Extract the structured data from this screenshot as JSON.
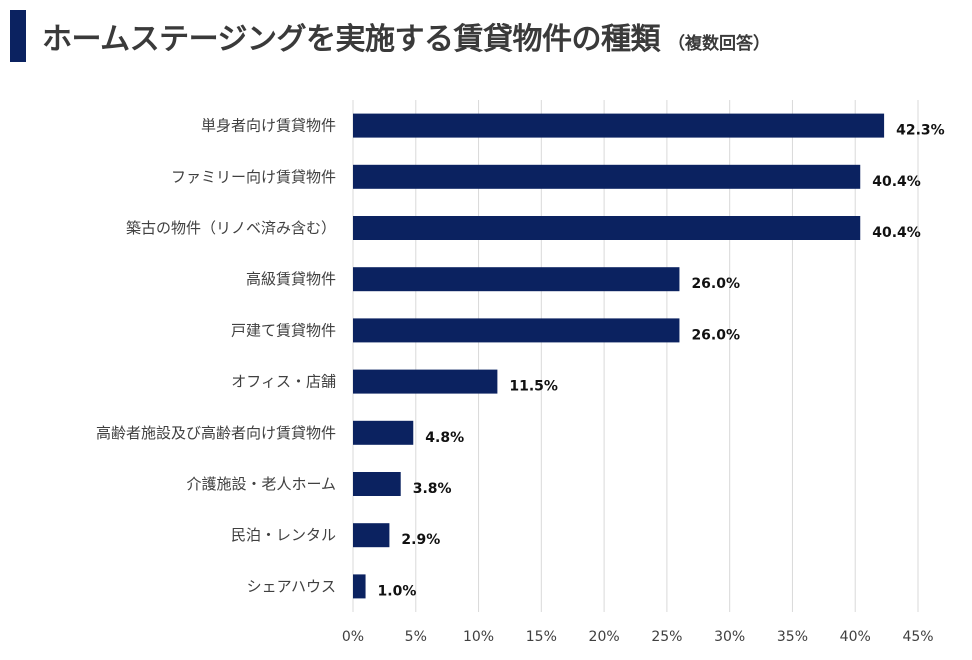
{
  "title": "ホームステージングを実施する賃貸物件の種類",
  "subtitle": "（複数回答）",
  "colors": {
    "accent": "#0b2260",
    "bar": "#0b2260",
    "grid": "#d9d9d9",
    "text": "#404040"
  },
  "chart_data": {
    "type": "bar",
    "orientation": "horizontal",
    "categories": [
      "単身者向け賃貸物件",
      "ファミリー向け賃貸物件",
      "築古の物件（リノベ済み含む）",
      "高級賃貸物件",
      "戸建て賃貸物件",
      "オフィス・店舗",
      "高齢者施設及び高齢者向け賃貸物件",
      "介護施設・老人ホーム",
      "民泊・レンタル",
      "シェアハウス"
    ],
    "values": [
      42.3,
      40.4,
      40.4,
      26.0,
      26.0,
      11.5,
      4.8,
      3.8,
      2.9,
      1.0
    ],
    "value_labels": [
      "42.3%",
      "40.4%",
      "40.4%",
      "26.0%",
      "26.0%",
      "11.5%",
      "4.8%",
      "3.8%",
      "2.9%",
      "1.0%"
    ],
    "xlim": [
      0,
      45
    ],
    "xticks": [
      0,
      5,
      10,
      15,
      20,
      25,
      30,
      35,
      40,
      45
    ],
    "xtick_labels": [
      "0%",
      "5%",
      "10%",
      "15%",
      "20%",
      "25%",
      "30%",
      "35%",
      "40%",
      "45%"
    ],
    "grid": true,
    "legend": "none"
  }
}
